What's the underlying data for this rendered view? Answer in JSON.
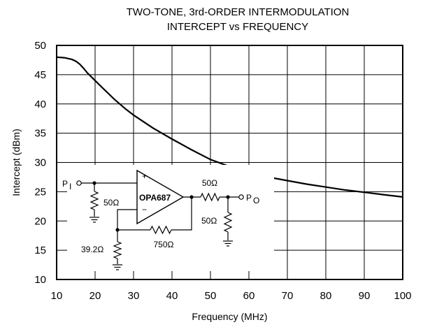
{
  "chart_data": {
    "type": "line",
    "title_lines": [
      "TWO-TONE, 3rd-ORDER INTERMODULATION",
      "INTERCEPT vs FREQUENCY"
    ],
    "xlabel": "Frequency (MHz)",
    "ylabel": "Intercept (dBm)",
    "xlim": [
      10,
      100
    ],
    "ylim": [
      10,
      50
    ],
    "xticks": [
      10,
      20,
      30,
      40,
      50,
      60,
      70,
      80,
      90,
      100
    ],
    "yticks": [
      10,
      15,
      20,
      25,
      30,
      35,
      40,
      45,
      50
    ],
    "grid": true,
    "series": [
      {
        "x": [
          10,
          12,
          14,
          15,
          16,
          17,
          18,
          20,
          22,
          25,
          28,
          30,
          35,
          40,
          45,
          50,
          55,
          60,
          65,
          70,
          75,
          80,
          85,
          90,
          95,
          100
        ],
        "y": [
          48,
          47.9,
          47.6,
          47.3,
          46.8,
          46.1,
          45.3,
          44,
          42.7,
          40.8,
          39.1,
          38.1,
          35.9,
          34,
          32.2,
          30.5,
          29.3,
          28.3,
          27.5,
          26.9,
          26.3,
          25.8,
          25.3,
          24.9,
          24.5,
          24.1
        ]
      }
    ]
  },
  "schematic": {
    "input_label": "P",
    "input_sub": "I",
    "output_label": "P",
    "output_sub": "O",
    "opamp_part": "OPA687",
    "plus_sign": "+",
    "minus_sign": "−",
    "r_input_term": "50Ω",
    "r_output_series": "50Ω",
    "r_load": "50Ω",
    "r_gain": "39.2Ω",
    "r_feedback": "750Ω"
  }
}
